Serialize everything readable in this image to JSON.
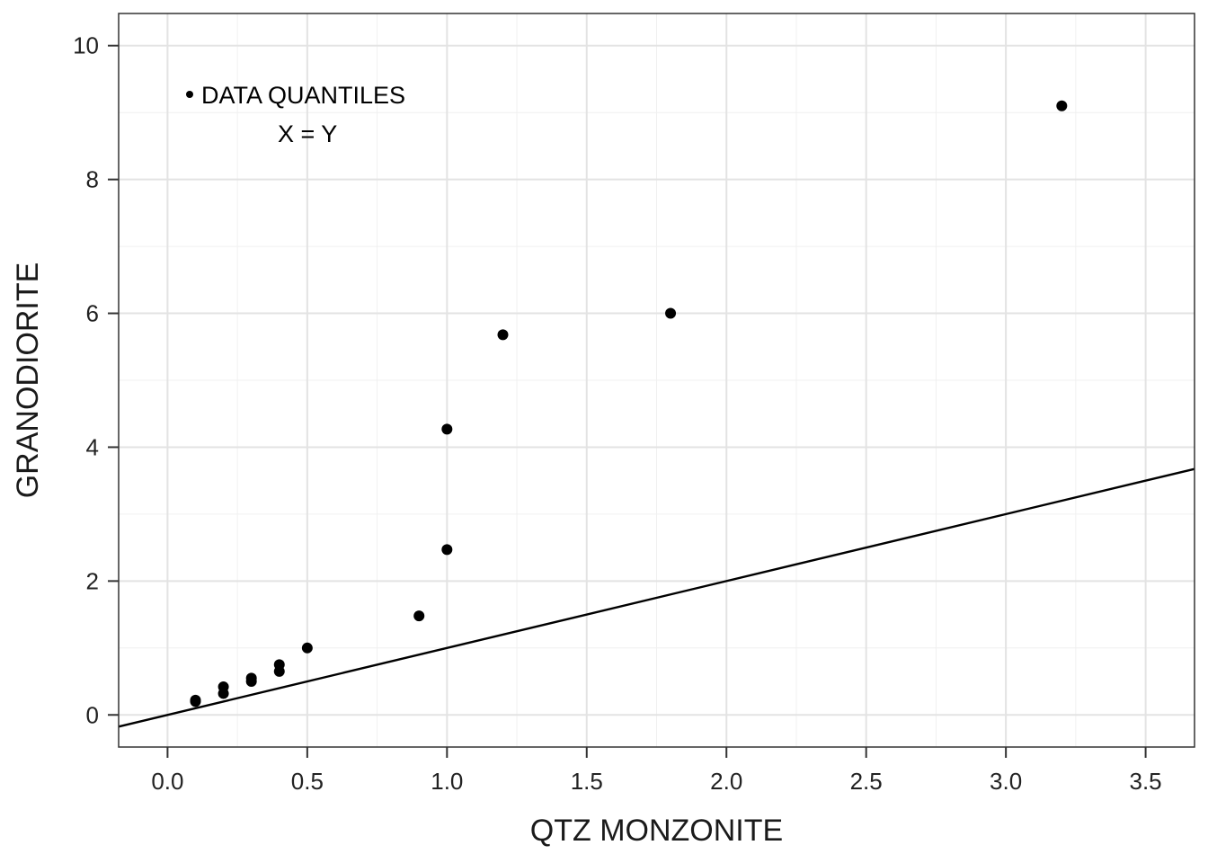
{
  "chart_data": {
    "type": "scatter",
    "title": "",
    "xlabel": "QTZ MONZONITE",
    "ylabel": "GRANODIORITE",
    "xlim": [
      -0.175,
      3.675
    ],
    "ylim": [
      -0.48,
      10.48
    ],
    "x_ticks": [
      0.0,
      0.5,
      1.0,
      1.5,
      2.0,
      2.5,
      3.0,
      3.5
    ],
    "x_tick_labels": [
      "0.0",
      "0.5",
      "1.0",
      "1.5",
      "2.0",
      "2.5",
      "3.0",
      "3.5"
    ],
    "y_ticks": [
      0,
      2,
      4,
      6,
      8,
      10
    ],
    "y_tick_labels": [
      "0",
      "2",
      "4",
      "6",
      "8",
      "10"
    ],
    "grid": true,
    "legend_position": "top-left",
    "series": [
      {
        "name": "DATA QUANTILES",
        "kind": "points",
        "color": "#000000",
        "points": [
          [
            0.1,
            0.2
          ],
          [
            0.1,
            0.22
          ],
          [
            0.2,
            0.32
          ],
          [
            0.2,
            0.42
          ],
          [
            0.3,
            0.5
          ],
          [
            0.3,
            0.55
          ],
          [
            0.4,
            0.65
          ],
          [
            0.4,
            0.75
          ],
          [
            0.5,
            1.0
          ],
          [
            0.9,
            1.48
          ],
          [
            1.0,
            2.47
          ],
          [
            1.0,
            4.27
          ],
          [
            1.2,
            5.68
          ],
          [
            1.8,
            6.0
          ],
          [
            3.2,
            9.1
          ]
        ]
      },
      {
        "name": "X = Y",
        "kind": "line",
        "color": "#000000",
        "slope": 1,
        "intercept": 0
      }
    ]
  }
}
